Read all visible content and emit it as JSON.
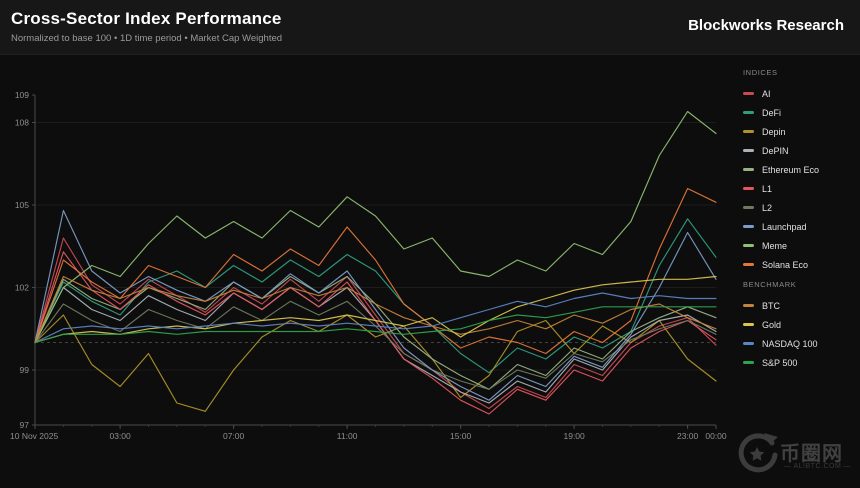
{
  "header": {
    "title": "Cross-Sector Index Performance",
    "subtitle": "Normalized to base 100 • 1D time period • Market Cap Weighted",
    "brand": "Blockworks Research"
  },
  "legend": {
    "sections": [
      {
        "title": "INDICES",
        "items": [
          "AI",
          "DeFi",
          "Depin",
          "DePIN",
          "Ethereum Eco",
          "L1",
          "L2",
          "Launchpad",
          "Meme",
          "Solana Eco"
        ]
      },
      {
        "title": "BENCHMARK",
        "items": [
          "BTC",
          "Gold",
          "NASDAQ 100",
          "S&P 500"
        ]
      }
    ]
  },
  "watermark": {
    "cn_text": "币圈网",
    "en_text": "ALIBTC.COM"
  },
  "chart_data": {
    "type": "line",
    "title": "Cross-Sector Index Performance",
    "xlabel": "",
    "ylabel": "",
    "x_unit": "hours_utc",
    "x": [
      0,
      1,
      2,
      3,
      4,
      5,
      6,
      7,
      8,
      9,
      10,
      11,
      12,
      13,
      14,
      15,
      16,
      17,
      18,
      19,
      20,
      21,
      22,
      23,
      24
    ],
    "ylim": [
      97,
      109
    ],
    "baseline": 100,
    "grid": "faint horizontal",
    "legend_position": "right",
    "date_label": "10 Nov 2025",
    "yticks": [
      97,
      99,
      102,
      105,
      108,
      109
    ],
    "xticks": [
      {
        "h": 0,
        "label": "10 Nov 2025"
      },
      {
        "h": 3,
        "label": "03:00"
      },
      {
        "h": 7,
        "label": "07:00"
      },
      {
        "h": 11,
        "label": "11:00"
      },
      {
        "h": 15,
        "label": "15:00"
      },
      {
        "h": 19,
        "label": "19:00"
      },
      {
        "h": 23,
        "label": "23:00"
      },
      {
        "h": 24,
        "label": "00:00"
      }
    ],
    "series": [
      {
        "name": "AI",
        "color": "#c84a55",
        "values": [
          100,
          103.8,
          102.1,
          101.4,
          102.3,
          101.7,
          101.1,
          102.0,
          101.4,
          102.3,
          101.5,
          102.4,
          101.0,
          99.6,
          99.0,
          98.2,
          97.6,
          98.4,
          98.0,
          99.2,
          98.8,
          100.0,
          100.6,
          100.9,
          99.9
        ]
      },
      {
        "name": "DeFi",
        "color": "#2e9e7f",
        "values": [
          100,
          102.2,
          101.5,
          101.0,
          102.2,
          102.6,
          102.0,
          102.8,
          102.2,
          103.0,
          102.4,
          103.2,
          102.6,
          101.4,
          100.6,
          99.6,
          98.9,
          99.8,
          99.4,
          100.2,
          99.8,
          100.4,
          102.8,
          104.5,
          103.1
        ]
      },
      {
        "name": "Depin",
        "color": "#b09328",
        "values": [
          100,
          101.0,
          99.2,
          98.4,
          99.6,
          97.8,
          97.5,
          99.0,
          100.2,
          100.8,
          100.4,
          101.0,
          100.2,
          100.6,
          99.4,
          98.0,
          98.8,
          100.4,
          100.8,
          99.6,
          100.6,
          100.0,
          100.8,
          99.4,
          98.6
        ]
      },
      {
        "name": "DePIN",
        "color": "#aab2b8",
        "values": [
          100,
          102.0,
          101.2,
          100.8,
          101.7,
          101.2,
          100.8,
          101.8,
          101.2,
          102.0,
          101.3,
          102.0,
          100.8,
          99.4,
          98.8,
          98.2,
          97.8,
          98.6,
          98.2,
          99.4,
          99.0,
          100.2,
          100.8,
          101.0,
          100.4
        ]
      },
      {
        "name": "Ethereum Eco",
        "color": "#97b283",
        "values": [
          100,
          102.3,
          101.6,
          101.2,
          102.0,
          101.6,
          101.2,
          102.2,
          101.6,
          102.4,
          101.8,
          102.4,
          101.4,
          100.2,
          99.4,
          98.8,
          98.3,
          99.2,
          98.8,
          99.8,
          99.4,
          100.4,
          100.9,
          101.3,
          100.9
        ]
      },
      {
        "name": "L1",
        "color": "#e4565f",
        "values": [
          100,
          103.3,
          101.9,
          101.2,
          102.1,
          101.5,
          101.0,
          101.8,
          101.2,
          102.0,
          101.3,
          102.2,
          100.8,
          99.4,
          98.7,
          97.9,
          97.4,
          98.3,
          97.9,
          99.0,
          98.6,
          99.8,
          100.4,
          100.8,
          100.1
        ]
      },
      {
        "name": "L2",
        "color": "#6e7a5e",
        "values": [
          100,
          101.4,
          100.8,
          100.4,
          101.2,
          100.8,
          100.5,
          101.3,
          100.8,
          101.5,
          101.0,
          101.5,
          100.6,
          99.6,
          99.0,
          98.6,
          98.3,
          99.0,
          98.7,
          99.6,
          99.3,
          100.1,
          100.5,
          100.8,
          100.3
        ]
      },
      {
        "name": "Launchpad",
        "color": "#7d9cc8",
        "values": [
          100,
          104.8,
          102.6,
          101.8,
          102.4,
          101.9,
          101.5,
          102.2,
          101.6,
          102.5,
          101.8,
          102.6,
          101.2,
          99.8,
          99.0,
          98.4,
          97.9,
          98.8,
          98.4,
          99.5,
          99.1,
          100.3,
          102.0,
          104.0,
          102.3
        ]
      },
      {
        "name": "Meme",
        "color": "#8fbf72",
        "values": [
          100,
          102.0,
          102.8,
          102.4,
          103.6,
          104.6,
          103.8,
          104.4,
          103.8,
          104.8,
          104.2,
          105.3,
          104.6,
          103.4,
          103.8,
          102.6,
          102.4,
          103.0,
          102.6,
          103.6,
          103.2,
          104.4,
          106.8,
          108.4,
          107.6
        ]
      },
      {
        "name": "Solana Eco",
        "color": "#e37639",
        "values": [
          100,
          103.0,
          102.2,
          101.6,
          102.8,
          102.4,
          102.0,
          103.2,
          102.6,
          103.4,
          102.8,
          104.2,
          103.0,
          101.4,
          100.6,
          99.8,
          100.2,
          100.0,
          99.6,
          100.4,
          100.0,
          100.8,
          103.4,
          105.6,
          105.1
        ]
      },
      {
        "name": "BTC",
        "color": "#c4823a",
        "values": [
          100,
          102.4,
          101.9,
          101.6,
          102.0,
          101.7,
          101.5,
          101.9,
          101.6,
          102.0,
          101.7,
          102.0,
          101.4,
          100.9,
          100.6,
          100.3,
          100.5,
          100.8,
          100.5,
          101.0,
          100.7,
          101.2,
          101.4,
          100.9,
          100.5
        ]
      },
      {
        "name": "Gold",
        "color": "#d9c44f",
        "values": [
          100,
          100.3,
          100.4,
          100.3,
          100.5,
          100.6,
          100.5,
          100.7,
          100.8,
          100.9,
          100.8,
          101.0,
          100.8,
          100.6,
          100.9,
          100.2,
          100.8,
          101.3,
          101.6,
          101.9,
          102.1,
          102.2,
          102.3,
          102.3,
          102.4
        ]
      },
      {
        "name": "NASDAQ 100",
        "color": "#5b84c4",
        "values": [
          100,
          100.5,
          100.6,
          100.5,
          100.6,
          100.5,
          100.6,
          100.7,
          100.6,
          100.7,
          100.6,
          100.7,
          100.6,
          100.5,
          100.6,
          100.9,
          101.2,
          101.5,
          101.3,
          101.6,
          101.8,
          101.6,
          101.7,
          101.6,
          101.6
        ]
      },
      {
        "name": "S&P 500",
        "color": "#2fa24c",
        "values": [
          100,
          100.3,
          100.3,
          100.3,
          100.4,
          100.3,
          100.4,
          100.4,
          100.4,
          100.4,
          100.4,
          100.5,
          100.4,
          100.3,
          100.4,
          100.5,
          100.8,
          101.0,
          100.9,
          101.1,
          101.3,
          101.3,
          101.3,
          101.3,
          101.3
        ]
      }
    ]
  }
}
